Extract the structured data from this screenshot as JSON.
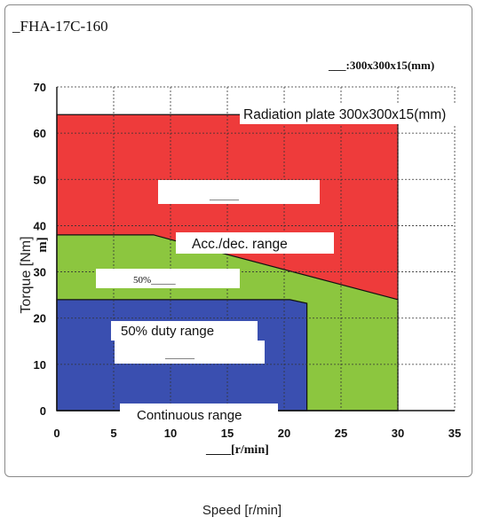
{
  "model_label": "_FHA-17C-160",
  "legend_note": "___:300x300x15(mm)",
  "x_unit_label": "____[r/min]",
  "y_axis": {
    "label": "Torque [Nm]",
    "unit_fragment": "m]"
  },
  "footer_caption": "Speed [r/min]",
  "chart_data": {
    "type": "area",
    "x": {
      "range": [
        0,
        35
      ],
      "ticks": [
        0,
        5,
        10,
        15,
        20,
        25,
        30,
        35
      ]
    },
    "y": {
      "range": [
        0,
        70
      ],
      "ticks": [
        0,
        10,
        20,
        30,
        40,
        50,
        60,
        70
      ]
    },
    "grid": true,
    "series": [
      {
        "name": "Radiation plate 300x300x15(mm)",
        "color": "#ee3b3b",
        "points": [
          [
            0,
            0
          ],
          [
            0,
            64
          ],
          [
            30,
            64
          ],
          [
            30,
            0
          ]
        ]
      },
      {
        "name": "Acc./dec. range",
        "color": "#8cc63f",
        "points": [
          [
            0,
            0
          ],
          [
            0,
            38
          ],
          [
            8.5,
            38
          ],
          [
            10,
            37
          ],
          [
            30,
            24
          ],
          [
            30,
            0
          ]
        ]
      },
      {
        "name": "Continuous range",
        "color": "#3a4fb0",
        "points": [
          [
            0,
            0
          ],
          [
            0,
            24
          ],
          [
            20.5,
            24
          ],
          [
            22,
            23.2
          ],
          [
            22,
            0
          ]
        ]
      }
    ],
    "annotations": {
      "radiation": "Radiation plate 300x300x15(mm)",
      "acc": "Acc./dec. range",
      "fifty_small": "50%_____",
      "duty": "50% duty range",
      "continuous": "Continuous range",
      "blank_line": "______"
    }
  }
}
